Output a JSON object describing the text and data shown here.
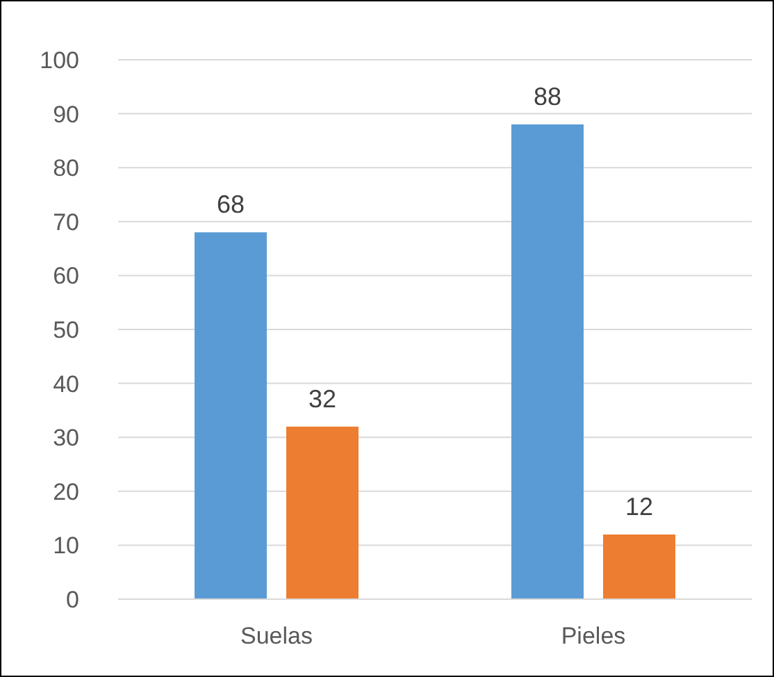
{
  "chart_data": {
    "type": "bar",
    "categories": [
      "Suelas",
      "Pieles"
    ],
    "series": [
      {
        "color": "#5b9bd5",
        "values": [
          68,
          88
        ]
      },
      {
        "color": "#ed7d31",
        "values": [
          32,
          12
        ]
      }
    ],
    "ylim": [
      0,
      100
    ],
    "yticks": [
      0,
      10,
      20,
      30,
      40,
      50,
      60,
      70,
      80,
      90,
      100
    ],
    "grid": "y",
    "data_labels": true
  }
}
